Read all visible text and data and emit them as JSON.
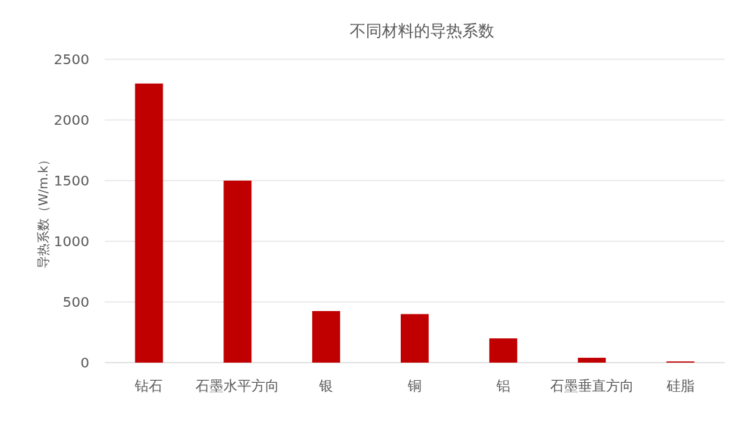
{
  "chart_data": {
    "type": "bar",
    "title": "不同材料的导热系数",
    "ylabel": "导热系数（W/m.k）",
    "categories": [
      "钻石",
      "石墨水平方向",
      "银",
      "铜",
      "铝",
      "石墨垂直方向",
      "硅脂"
    ],
    "values": [
      2300,
      1500,
      425,
      400,
      200,
      40,
      10
    ],
    "color": "#c00000",
    "ylim": [
      0,
      2500
    ],
    "yticks": [
      0,
      500,
      1000,
      1500,
      2000,
      2500
    ],
    "grid": "y"
  }
}
